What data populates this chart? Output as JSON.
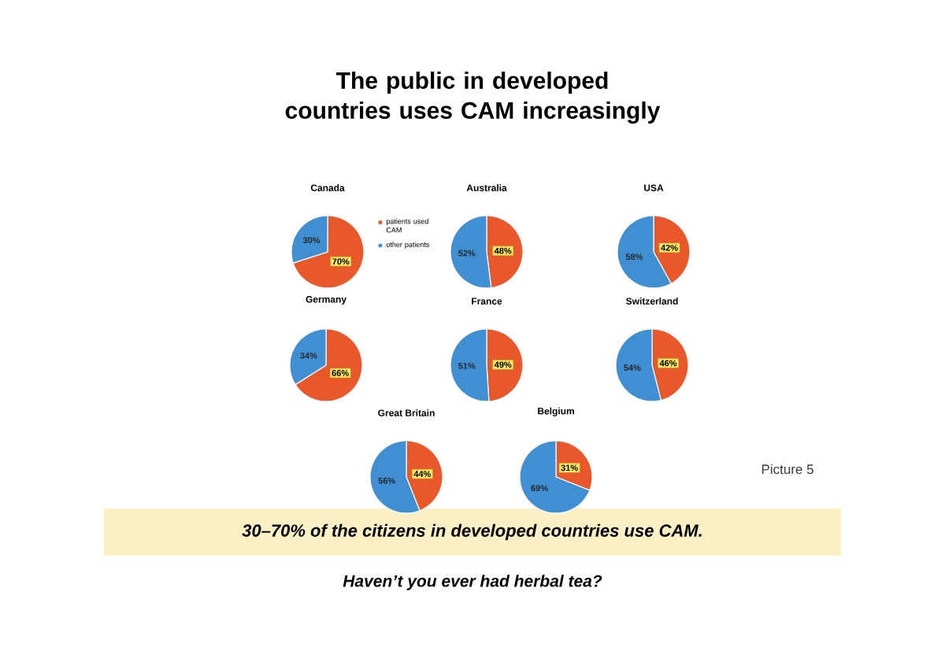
{
  "chart_data": [
    {
      "type": "other",
      "title": "The public in developed countries uses CAM increasingly",
      "annotations": [
        "30–70% of the citizens in developed countries use CAM.",
        "Haven’t you ever had herbal tea?",
        "Picture 5"
      ]
    },
    {
      "type": "pie",
      "title": "Canada",
      "categories": [
        "patients used CAM",
        "other patients"
      ],
      "values": [
        70,
        30
      ],
      "colors": [
        "#e8582b",
        "#3f8fd2"
      ],
      "value_labels": [
        "70%",
        "30%"
      ],
      "legend": "right"
    },
    {
      "type": "pie",
      "title": "Australia",
      "categories": [
        null,
        null
      ],
      "values": [
        48,
        52
      ],
      "colors": [
        "#e8582b",
        "#3f8fd2"
      ],
      "value_labels": [
        "48%",
        "52%"
      ]
    },
    {
      "type": "pie",
      "title": "USA",
      "categories": [
        null,
        null
      ],
      "values": [
        42,
        58
      ],
      "colors": [
        "#e8582b",
        "#3f8fd2"
      ],
      "value_labels": [
        "42%",
        "58%"
      ]
    },
    {
      "type": "pie",
      "title": "Germany",
      "categories": [
        null,
        null
      ],
      "values": [
        66,
        34
      ],
      "colors": [
        "#e8582b",
        "#3f8fd2"
      ],
      "value_labels": [
        "66%",
        "34%"
      ]
    },
    {
      "type": "pie",
      "title": "France",
      "categories": [
        null,
        null
      ],
      "values": [
        49,
        51
      ],
      "colors": [
        "#e8582b",
        "#3f8fd2"
      ],
      "value_labels": [
        "49%",
        "51%"
      ]
    },
    {
      "type": "pie",
      "title": "Switzerland",
      "categories": [
        null,
        null
      ],
      "values": [
        46,
        54
      ],
      "colors": [
        "#e8582b",
        "#3f8fd2"
      ],
      "value_labels": [
        "46%",
        "54%"
      ]
    },
    {
      "type": "pie",
      "title": "Great Britain",
      "categories": [
        null,
        null
      ],
      "values": [
        44,
        56
      ],
      "colors": [
        "#e8582b",
        "#3f8fd2"
      ],
      "value_labels": [
        "44%",
        "56%"
      ]
    },
    {
      "type": "pie",
      "title": "Belgium",
      "categories": [
        null,
        null
      ],
      "values": [
        31,
        69
      ],
      "colors": [
        "#e8582b",
        "#3f8fd2"
      ],
      "value_labels": [
        "31%",
        "69%"
      ]
    }
  ]
}
